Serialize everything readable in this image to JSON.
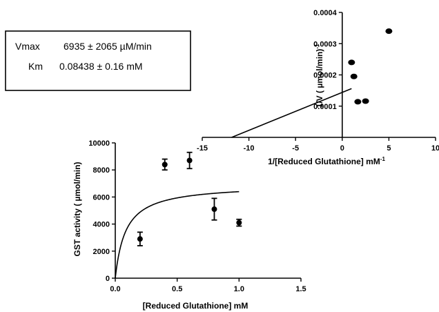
{
  "stats_box": {
    "vmax_label": "Vmax",
    "vmax_value": "6935 ± 2065 µM/min",
    "km_label": "Km",
    "km_value": "0.08438 ± 0.16 mM"
  },
  "chart_data": [
    {
      "type": "scatter",
      "title": "",
      "xlabel": "[Reduced Glutathione] mM",
      "ylabel": "GST activity ( µmol/min)",
      "xlim": [
        0,
        1.5
      ],
      "ylim": [
        0,
        10000
      ],
      "xticks": [
        "0.0",
        "0.5",
        "1.0",
        "1.5"
      ],
      "yticks": [
        "0",
        "2000",
        "4000",
        "6000",
        "8000",
        "10000"
      ],
      "points": [
        {
          "x": 0.2,
          "y": 2900,
          "err": 500
        },
        {
          "x": 0.4,
          "y": 8400,
          "err": 400
        },
        {
          "x": 0.6,
          "y": 8700,
          "err": 600
        },
        {
          "x": 0.8,
          "y": 5100,
          "err": 800
        },
        {
          "x": 1.0,
          "y": 4100,
          "err": 250
        }
      ],
      "fit": {
        "model": "michaelis-menten",
        "vmax": 6935,
        "km": 0.08438,
        "x_range": [
          0,
          1.0
        ]
      }
    },
    {
      "type": "scatter",
      "title": "",
      "xlabel": "1/[Reduced Glutathione] mM",
      "xlabel_sup": "-1",
      "ylabel": "1/V ( µmol/min)",
      "ylabel_sup": "-1",
      "xlim": [
        -15,
        10
      ],
      "ylim": [
        0,
        0.0004
      ],
      "xticks": [
        "-15",
        "-10",
        "-5",
        "0",
        "5",
        "10"
      ],
      "yticks": [
        "0.0001",
        "0.0002",
        "0.0003",
        "0.0004"
      ],
      "points": [
        {
          "x": 5.0,
          "y": 0.00034
        },
        {
          "x": 1.0,
          "y": 0.00024
        },
        {
          "x": 1.25,
          "y": 0.000195
        },
        {
          "x": 2.5,
          "y": 0.000116
        },
        {
          "x": 1.67,
          "y": 0.000114
        }
      ],
      "fit": {
        "model": "linear",
        "x_range": [
          -11.85,
          1.0
        ],
        "y_range": [
          0.0,
          0.000156
        ]
      }
    }
  ]
}
